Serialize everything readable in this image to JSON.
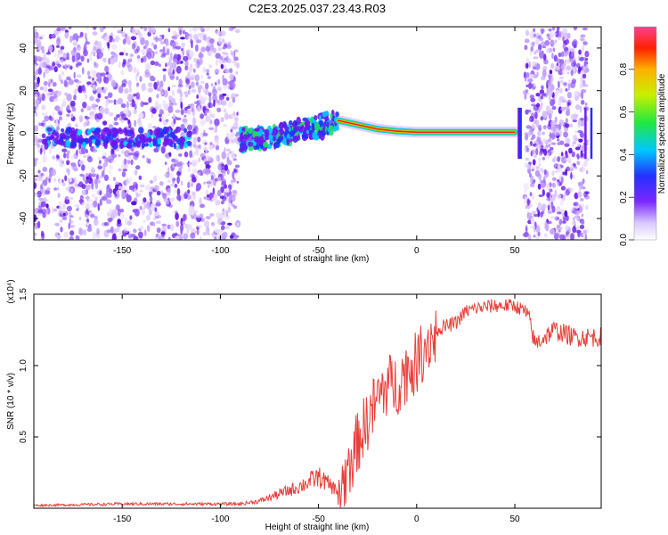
{
  "title": "C2E3.2025.037.23.43.R03",
  "chart_data": [
    {
      "type": "heatmap",
      "title": "C2E3.2025.037.23.43.R03",
      "xlabel": "Height of straight line (km)",
      "ylabel": "Frequency (Hz)",
      "xlim": [
        -195,
        94
      ],
      "ylim": [
        -50,
        50
      ],
      "xticks": [
        -150,
        -100,
        -50,
        0,
        50
      ],
      "yticks": [
        -40,
        -20,
        0,
        20,
        40
      ],
      "colorbar": {
        "label": "Normalized spectral amplitude",
        "range": [
          0,
          1
        ],
        "ticks": [
          "0.0",
          "0.2",
          "0.4",
          "0.6",
          "0.8"
        ]
      },
      "regions": [
        {
          "name": "noise-left",
          "x": [
            -195,
            -91
          ],
          "y": [
            -50,
            50
          ],
          "amplitude": 0.15
        },
        {
          "name": "signal-trace-noisy",
          "x": [
            -90,
            -40
          ],
          "freq": [
            -3,
            6
          ],
          "amplitude": 0.45
        },
        {
          "name": "signal-trace",
          "x": [
            -40,
            50
          ],
          "freq": [
            6,
            0
          ],
          "amplitude": 0.95
        },
        {
          "name": "noise-right",
          "x": [
            55,
            87
          ],
          "y": [
            -50,
            50
          ],
          "amplitude": 0.15
        }
      ],
      "trace": {
        "x": [
          -90,
          -80,
          -70,
          -60,
          -50,
          -40,
          -35,
          -30,
          -20,
          -10,
          0,
          10,
          20,
          30,
          40,
          50
        ],
        "freq": [
          -3,
          -2,
          -1,
          1,
          3,
          6,
          5,
          4,
          2,
          1,
          0.5,
          0.5,
          0.5,
          0.5,
          0.5,
          0.5
        ]
      }
    },
    {
      "type": "line",
      "xlabel": "Height of straight line (km)",
      "ylabel": "SNR (10 * v/v)",
      "yscale_label": "(x10⁴)",
      "xlim": [
        -195,
        94
      ],
      "ylim": [
        0,
        1.5
      ],
      "xticks": [
        -150,
        -100,
        -50,
        0,
        50
      ],
      "yticks": [
        "0.5",
        "1.0",
        "1.5"
      ],
      "series": [
        {
          "name": "SNR",
          "color": "#e8403a",
          "x": [
            -195,
            -150,
            -100,
            -90,
            -80,
            -70,
            -60,
            -50,
            -40,
            -35,
            -30,
            -25,
            -20,
            -15,
            -10,
            -5,
            0,
            5,
            10,
            20,
            25,
            30,
            40,
            50,
            55,
            58,
            60,
            65,
            70,
            80,
            90,
            94
          ],
          "y": [
            0.02,
            0.03,
            0.03,
            0.03,
            0.05,
            0.1,
            0.15,
            0.22,
            0.12,
            0.3,
            0.5,
            0.65,
            0.8,
            0.9,
            0.9,
            1.0,
            1.05,
            1.2,
            1.25,
            1.3,
            1.38,
            1.4,
            1.42,
            1.42,
            1.38,
            1.3,
            1.15,
            1.2,
            1.25,
            1.2,
            1.2,
            1.2
          ]
        }
      ]
    }
  ]
}
